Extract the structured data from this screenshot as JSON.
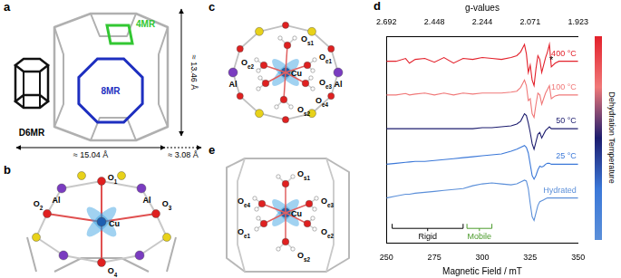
{
  "panels": [
    {
      "letter": "a",
      "labels": [
        {
          "text": "4MR",
          "color": "#33c733"
        },
        {
          "text": "8MR",
          "color": "#1e2fc0"
        },
        {
          "text": "D6MR",
          "color": "#000000"
        }
      ],
      "dimensions": [
        "≈ 13.46 Å",
        "≈ 15.04 Å",
        "≈ 3.08 Å"
      ]
    },
    {
      "letter": "b",
      "labels": [
        {
          "text": "Cu"
        },
        {
          "text": "O",
          "sub": "1"
        },
        {
          "text": "O",
          "sub": "2"
        },
        {
          "text": "O",
          "sub": "3"
        },
        {
          "text": "O",
          "sub": "4"
        },
        {
          "text": "Al"
        },
        {
          "text": "Al"
        }
      ]
    },
    {
      "letter": "c",
      "labels": [
        {
          "text": "Cu"
        },
        {
          "text": "O",
          "sub": "s1"
        },
        {
          "text": "O",
          "sub": "e1"
        },
        {
          "text": "O",
          "sub": "e2"
        },
        {
          "text": "O",
          "sub": "e3"
        },
        {
          "text": "O",
          "sub": "e4"
        },
        {
          "text": "O",
          "sub": "s2"
        },
        {
          "text": "Al"
        },
        {
          "text": "Al"
        }
      ]
    },
    {
      "letter": "e",
      "labels": [
        {
          "text": "Cu"
        },
        {
          "text": "O",
          "sub": "s1"
        },
        {
          "text": "O",
          "sub": "e1"
        },
        {
          "text": "O",
          "sub": "e2"
        },
        {
          "text": "O",
          "sub": "e3"
        },
        {
          "text": "O",
          "sub": "e4"
        },
        {
          "text": "O",
          "sub": "s2"
        }
      ]
    }
  ],
  "chart_letter": "d",
  "chart_data": {
    "type": "line",
    "x_label": "Magnetic Field / mT",
    "x2_label": "g-values",
    "x": [
      250,
      255,
      260,
      262,
      265,
      270,
      275,
      280,
      285,
      290,
      295,
      300,
      305,
      310,
      315,
      318,
      320,
      322,
      323,
      324,
      325,
      326,
      327,
      328,
      329,
      330,
      331,
      332,
      333,
      334,
      335,
      336,
      338,
      340,
      345,
      350
    ],
    "series": [
      {
        "name": "400 °C",
        "color": "#e3212b",
        "values": [
          8.5,
          8.5,
          8.65,
          8.4,
          8.6,
          8.65,
          8.45,
          8.7,
          8.4,
          8.65,
          8.6,
          8.7,
          8.65,
          8.6,
          8.7,
          8.8,
          9.0,
          9.4,
          8.9,
          7.9,
          8.3,
          7.5,
          7.2,
          8.1,
          8.8,
          8.6,
          7.9,
          8.3,
          8.7,
          9.0,
          9.4,
          8.2,
          8.4,
          8.5,
          8.5,
          8.5
        ]
      },
      {
        "name": "100 °C",
        "color": "#f07878",
        "values": [
          6.7,
          6.7,
          6.78,
          6.7,
          6.75,
          6.8,
          6.7,
          6.8,
          6.7,
          6.8,
          6.75,
          6.8,
          6.8,
          6.8,
          6.85,
          6.9,
          7.1,
          7.5,
          7.2,
          6.4,
          6.5,
          5.7,
          5.5,
          6.2,
          6.8,
          6.7,
          6.2,
          6.5,
          6.8,
          7.0,
          7.2,
          6.5,
          6.65,
          6.7,
          6.7,
          6.7
        ]
      },
      {
        "name": "50 °C",
        "color": "#1c1c6e",
        "values": [
          4.9,
          4.9,
          4.9,
          4.9,
          4.9,
          4.9,
          4.9,
          4.9,
          4.9,
          4.9,
          4.9,
          4.95,
          4.95,
          5.0,
          5.05,
          5.15,
          5.3,
          5.7,
          5.6,
          5.2,
          4.7,
          4.1,
          3.8,
          4.2,
          4.6,
          4.7,
          4.4,
          4.6,
          4.8,
          4.9,
          5.0,
          4.9,
          4.9,
          4.9,
          4.9,
          4.9
        ]
      },
      {
        "name": "25 °C",
        "color": "#3b78d8",
        "values": [
          3.0,
          3.05,
          3.1,
          3.12,
          3.15,
          3.15,
          3.2,
          3.25,
          3.3,
          3.35,
          3.4,
          3.45,
          3.5,
          3.55,
          3.7,
          3.8,
          3.9,
          4.0,
          3.9,
          3.6,
          3.0,
          2.4,
          2.2,
          2.4,
          2.7,
          2.9,
          2.85,
          2.9,
          3.0,
          3.05,
          3.05,
          3.0,
          3.0,
          3.0,
          3.0,
          3.0
        ]
      },
      {
        "name": "Hydrated",
        "color": "#5b8fd9",
        "values": [
          1.2,
          1.3,
          1.4,
          1.4,
          1.45,
          1.5,
          1.55,
          1.6,
          1.65,
          1.7,
          1.85,
          1.95,
          2.0,
          1.95,
          1.9,
          1.95,
          2.05,
          2.15,
          2.1,
          1.7,
          0.9,
          0.2,
          0.0,
          0.4,
          0.8,
          1.0,
          1.05,
          1.1,
          1.15,
          1.2,
          1.2,
          1.2,
          1.2,
          1.2,
          1.2,
          1.2
        ]
      }
    ],
    "xlim": [
      250,
      350
    ],
    "xticks": [
      250,
      275,
      300,
      325,
      350
    ],
    "x2lim": [
      250,
      350
    ],
    "x2ticks": [
      {
        "value": 250,
        "label": "2.692"
      },
      {
        "value": 275,
        "label": "2.448"
      },
      {
        "value": 300,
        "label": "2.244"
      },
      {
        "value": 325,
        "label": "2.071"
      },
      {
        "value": 350,
        "label": "1.923"
      }
    ],
    "ylim": [
      -1.2,
      9.8
    ],
    "grid": false,
    "tick_labels": "x",
    "marker": "none",
    "line_style": "solid",
    "annotations": [
      {
        "kind": "mark",
        "text": "*",
        "x": 336,
        "series": "400 °C"
      },
      {
        "kind": "bracket",
        "text": "Rigid",
        "x": [
          253,
          290
        ],
        "color": "#000000"
      },
      {
        "kind": "bracket",
        "text": "Mobile",
        "x": [
          292,
          305
        ],
        "color": "#4a9a2a"
      },
      {
        "kind": "colorbar",
        "text": "Dehydration Temperature"
      }
    ]
  }
}
